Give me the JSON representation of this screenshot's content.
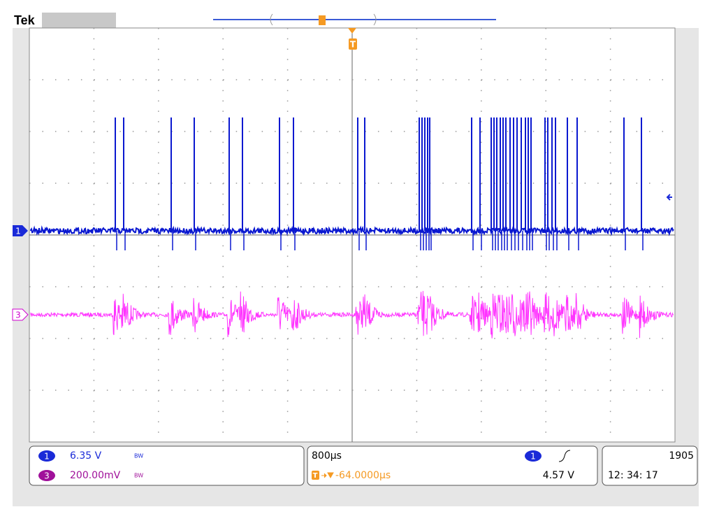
{
  "header": {
    "brand": "Tek",
    "trigger_marker": "T"
  },
  "channels": [
    {
      "label": "1",
      "scale": "6.35 V",
      "bw_limit": "BW"
    },
    {
      "label": "3",
      "scale": "200.00mV",
      "bw_limit": "BW"
    }
  ],
  "timebase": {
    "scale": "800µs",
    "trigger_marker": "T",
    "trigger_position": "-64.0000µs"
  },
  "trigger": {
    "channel": "1",
    "level": "4.57 V"
  },
  "status": {
    "record_count": "1905",
    "time": "12: 34: 17"
  }
}
